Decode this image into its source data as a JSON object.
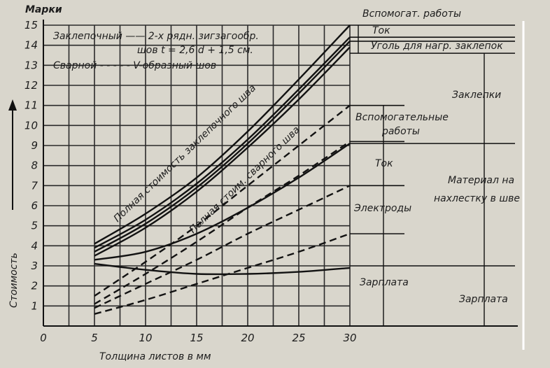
{
  "chart_data": {
    "type": "line",
    "ylabel_top": "Марки",
    "ylabel_side": "Стоимость",
    "xlabel": "Толщина листов в мм",
    "xlim": [
      0,
      30
    ],
    "ylim": [
      0,
      15
    ],
    "x_ticks": [
      "0",
      "5",
      "10",
      "15",
      "20",
      "25",
      "30"
    ],
    "y_ticks": [
      "1",
      "2",
      "3",
      "4",
      "5",
      "6",
      "7",
      "8",
      "9",
      "10",
      "11",
      "12",
      "13",
      "14",
      "15"
    ],
    "grid": true,
    "legend": {
      "line1": "Заклепочный —— 2-х рядн. зигзагообр.",
      "line2": "шов t = 2,6 d + 1,5 см.",
      "line3": "Сварной - - - - - V-образный шов"
    },
    "annotations": {
      "riveted_total": "Полная стоимость заклепочного шва",
      "welded_total": "Полная стоим. сварного шва",
      "welded_aux": "Вспомогательные работы",
      "welded_current": "Ток",
      "welded_electrodes": "Электроды",
      "welded_wages": "Зарплата",
      "riveted_aux": "Вспомогат. работы",
      "riveted_current": "Ток",
      "riveted_coal": "Уголь для нагр. заклепок",
      "riveted_rivets": "Заклепки",
      "riveted_material": "Материал на нахлестку в шве",
      "riveted_wages": "Зарплата"
    },
    "series": [
      {
        "style": "solid",
        "x": [
          5,
          10,
          15,
          20,
          25,
          30
        ],
        "y": [
          4.1,
          5.6,
          7.4,
          9.7,
          12.3,
          15.0
        ]
      },
      {
        "style": "solid",
        "x": [
          5,
          10,
          15,
          20,
          25,
          30
        ],
        "y": [
          3.9,
          5.3,
          7.1,
          9.3,
          11.8,
          14.4
        ]
      },
      {
        "style": "solid",
        "x": [
          5,
          10,
          15,
          20,
          25,
          30
        ],
        "y": [
          3.7,
          5.1,
          6.9,
          9.1,
          11.6,
          14.2
        ]
      },
      {
        "style": "solid",
        "x": [
          5,
          10,
          15,
          20,
          25,
          30
        ],
        "y": [
          3.5,
          4.9,
          6.7,
          8.9,
          11.3,
          13.9
        ]
      },
      {
        "style": "solid",
        "x": [
          5,
          10,
          15,
          20,
          25,
          30
        ],
        "y": [
          3.3,
          3.7,
          4.6,
          5.9,
          7.4,
          9.1
        ]
      },
      {
        "style": "solid",
        "x": [
          5,
          10,
          15,
          20,
          25,
          30
        ],
        "y": [
          3.1,
          2.8,
          2.6,
          2.6,
          2.7,
          2.9
        ]
      },
      {
        "style": "dashed",
        "x": [
          5,
          10,
          15,
          20,
          25,
          30
        ],
        "y": [
          1.5,
          3.2,
          5.0,
          7.0,
          9.0,
          11.0
        ]
      },
      {
        "style": "dashed",
        "x": [
          5,
          10,
          15,
          20,
          25,
          30
        ],
        "y": [
          1.1,
          2.6,
          4.2,
          5.9,
          7.5,
          9.2
        ]
      },
      {
        "style": "dashed",
        "x": [
          5,
          10,
          15,
          20,
          25,
          30
        ],
        "y": [
          0.9,
          2.1,
          3.3,
          4.6,
          5.8,
          7.0
        ]
      },
      {
        "style": "dashed",
        "x": [
          5,
          10,
          15,
          20,
          25,
          30
        ],
        "y": [
          0.6,
          1.3,
          2.1,
          2.9,
          3.7,
          4.6
        ]
      }
    ]
  }
}
